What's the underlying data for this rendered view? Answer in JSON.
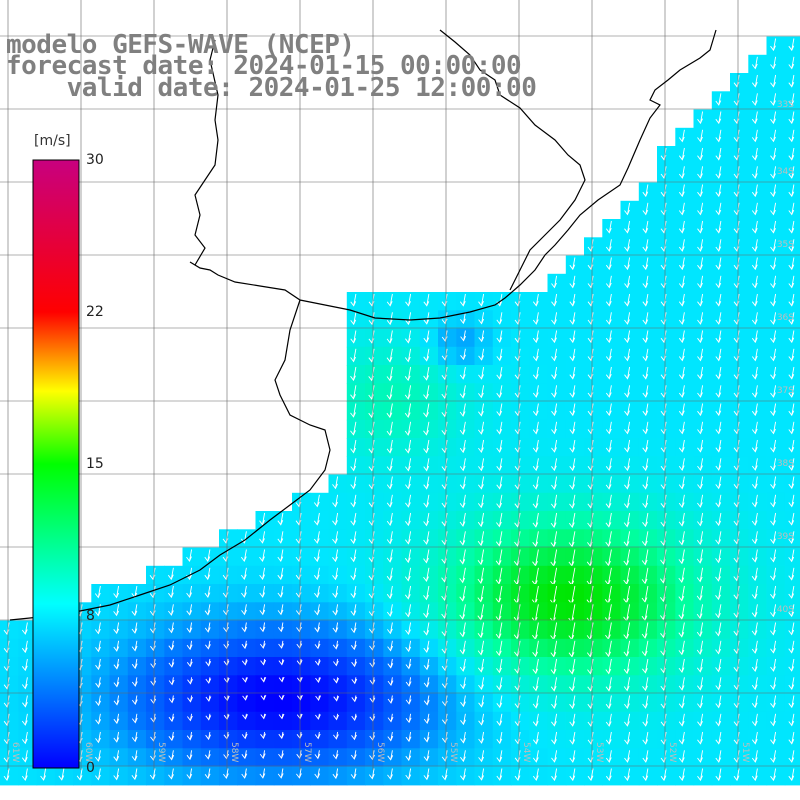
{
  "title": {
    "line1": "modelo GEFS-WAVE (NCEP)",
    "line2": "forecast date: 2024-01-15 00:00:00",
    "line3": "    valid date: 2024-01-25 12:00:00"
  },
  "colorbar": {
    "unit": "[m/s]",
    "ticks": [
      "30",
      "22",
      "15",
      "8",
      "0"
    ]
  },
  "lat_labels": [
    "33S",
    "34S",
    "35S",
    "36S",
    "37S",
    "38S",
    "39S",
    "40S"
  ],
  "lon_labels": [
    "61W",
    "60W",
    "59W",
    "58W",
    "57W",
    "56W",
    "55W",
    "54W",
    "53W",
    "52W",
    "51W"
  ],
  "colors": {
    "land": "#ffffff",
    "coast": "#000000",
    "grid": "#666666",
    "arrow": "#ffffff"
  }
}
